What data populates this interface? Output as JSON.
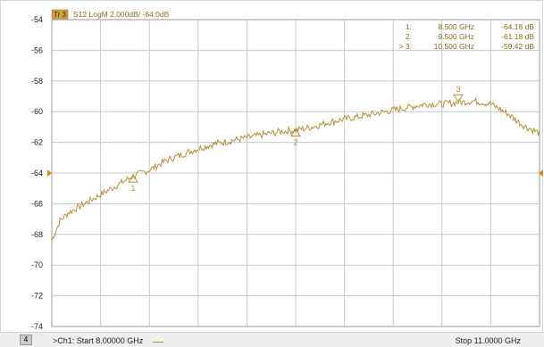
{
  "trace_header": {
    "badge": "Tr 3",
    "text": "S12 LogM 2.000dB/ -64.0dB"
  },
  "markers": [
    {
      "label": "1:",
      "freq": "8.500  GHz",
      "value": "-64.18 dB"
    },
    {
      "label": "2:",
      "freq": "9.500  GHz",
      "value": "-61.18 dB"
    },
    {
      "label": "> 3:",
      "freq": "10.500  GHz",
      "value": "-59.42 dB"
    }
  ],
  "footer": {
    "channel_badge": "4",
    "start": ">Ch1:  Start  8.00000 GHz",
    "stop": "Stop  11.0000 GHz"
  },
  "colors": {
    "trace": "#b5913a",
    "grid": "#c8c8c8",
    "reference_marker": "#d88a16"
  },
  "chart_data": {
    "type": "line",
    "xlabel": "",
    "ylabel": "",
    "xlim": [
      8.0,
      11.0
    ],
    "ylim": [
      -74,
      -54
    ],
    "reference_level": -64,
    "y_ticks": [
      -54,
      -56,
      -58,
      -60,
      -62,
      -64,
      -66,
      -68,
      -70,
      -72,
      -74
    ],
    "x_divisions": 10,
    "grid": true,
    "series": [
      {
        "x": [
          8.0,
          8.05,
          8.1,
          8.2,
          8.3,
          8.4,
          8.5,
          8.6,
          8.7,
          8.8,
          8.9,
          9.0,
          9.1,
          9.2,
          9.3,
          9.4,
          9.5,
          9.6,
          9.7,
          9.8,
          9.9,
          10.0,
          10.1,
          10.2,
          10.3,
          10.4,
          10.5,
          10.6,
          10.7,
          10.8,
          10.9,
          11.0
        ],
        "y": [
          -68.4,
          -67.1,
          -66.6,
          -66.0,
          -65.4,
          -64.8,
          -64.2,
          -63.8,
          -63.2,
          -62.8,
          -62.4,
          -62.1,
          -61.9,
          -61.7,
          -61.5,
          -61.3,
          -61.2,
          -61.0,
          -60.7,
          -60.5,
          -60.3,
          -60.1,
          -59.9,
          -59.7,
          -59.5,
          -59.5,
          -59.4,
          -59.3,
          -59.5,
          -60.1,
          -60.9,
          -61.4
        ]
      }
    ],
    "annotations": [
      {
        "label": "1",
        "x": 8.5,
        "y": -64.18
      },
      {
        "label": "2",
        "x": 9.5,
        "y": -61.18
      },
      {
        "label": "3",
        "x": 10.5,
        "y": -59.42
      }
    ]
  }
}
